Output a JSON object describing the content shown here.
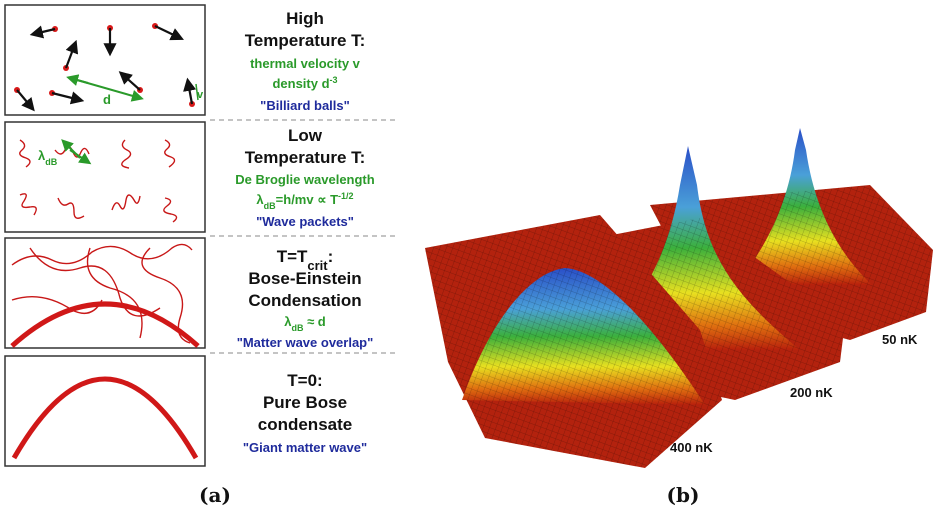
{
  "panel_a": {
    "rows": [
      {
        "title": [
          "High",
          "Temperature T:"
        ],
        "lines": [
          "thermal velocity v",
          [
            "density d",
            "-3"
          ]
        ],
        "quote": "\"Billiard balls\"",
        "labels": [
          "d",
          "v"
        ]
      },
      {
        "title": [
          "Low",
          "Temperature T:"
        ],
        "lines": [
          "De Broglie wavelength",
          [
            "λ",
            "dB",
            "=h/mv ∝ T",
            "-1/2"
          ]
        ],
        "quote": "\"Wave packets\"",
        "labels": [
          [
            "λ",
            "dB"
          ]
        ]
      },
      {
        "title": [
          [
            "T=T",
            "crit",
            ":"
          ],
          "Bose-Einstein",
          "Condensation"
        ],
        "lines": [
          [
            "λ",
            "dB",
            " ≈ d"
          ]
        ],
        "quote": "\"Matter wave overlap\""
      },
      {
        "title": [
          "T=0:",
          "Pure Bose",
          "condensate"
        ],
        "quote": "\"Giant matter wave\""
      }
    ],
    "caption": "(a)"
  },
  "panel_b": {
    "labels": [
      "400 nK",
      "200 nK",
      "50 nK"
    ],
    "caption": "(b)"
  }
}
